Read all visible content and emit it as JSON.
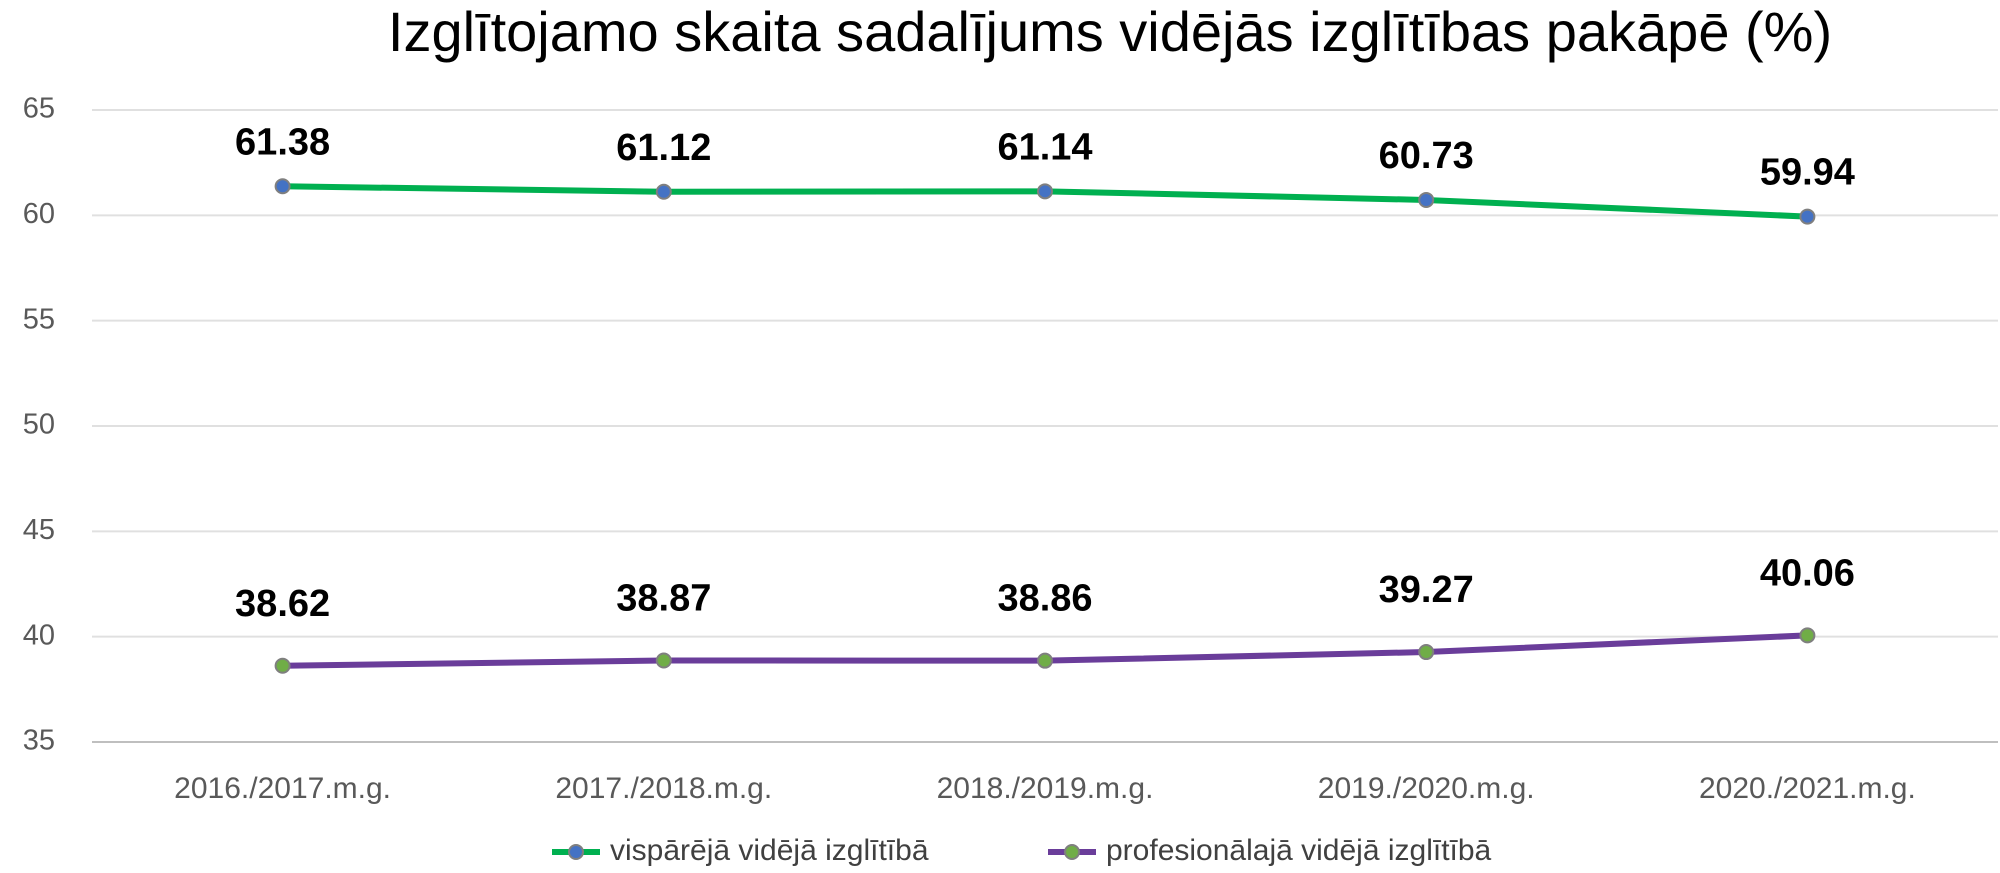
{
  "chart_data": {
    "type": "line",
    "title": "Izglītojamo skaita sadalījums vidējās izglītības pakāpē (%)",
    "categories": [
      "2016./2017.m.g.",
      "2017./2018.m.g.",
      "2018./2019.m.g.",
      "2019./2020.m.g.",
      "2020./2021.m.g."
    ],
    "series": [
      {
        "name": "vispārējā vidējā izglītībā",
        "color": "#00b050",
        "marker_color": "#4472c4",
        "values": [
          61.38,
          61.12,
          61.14,
          60.73,
          59.94
        ]
      },
      {
        "name": "profesionālajā vidējā izglītībā",
        "color": "#6a3d9a",
        "marker_color": "#70ad47",
        "values": [
          38.62,
          38.87,
          38.86,
          39.27,
          40.06
        ]
      }
    ],
    "ylim": [
      35,
      65
    ],
    "yticks": [
      35,
      40,
      45,
      50,
      55,
      60,
      65
    ],
    "grid": true,
    "legend": "bottom"
  }
}
